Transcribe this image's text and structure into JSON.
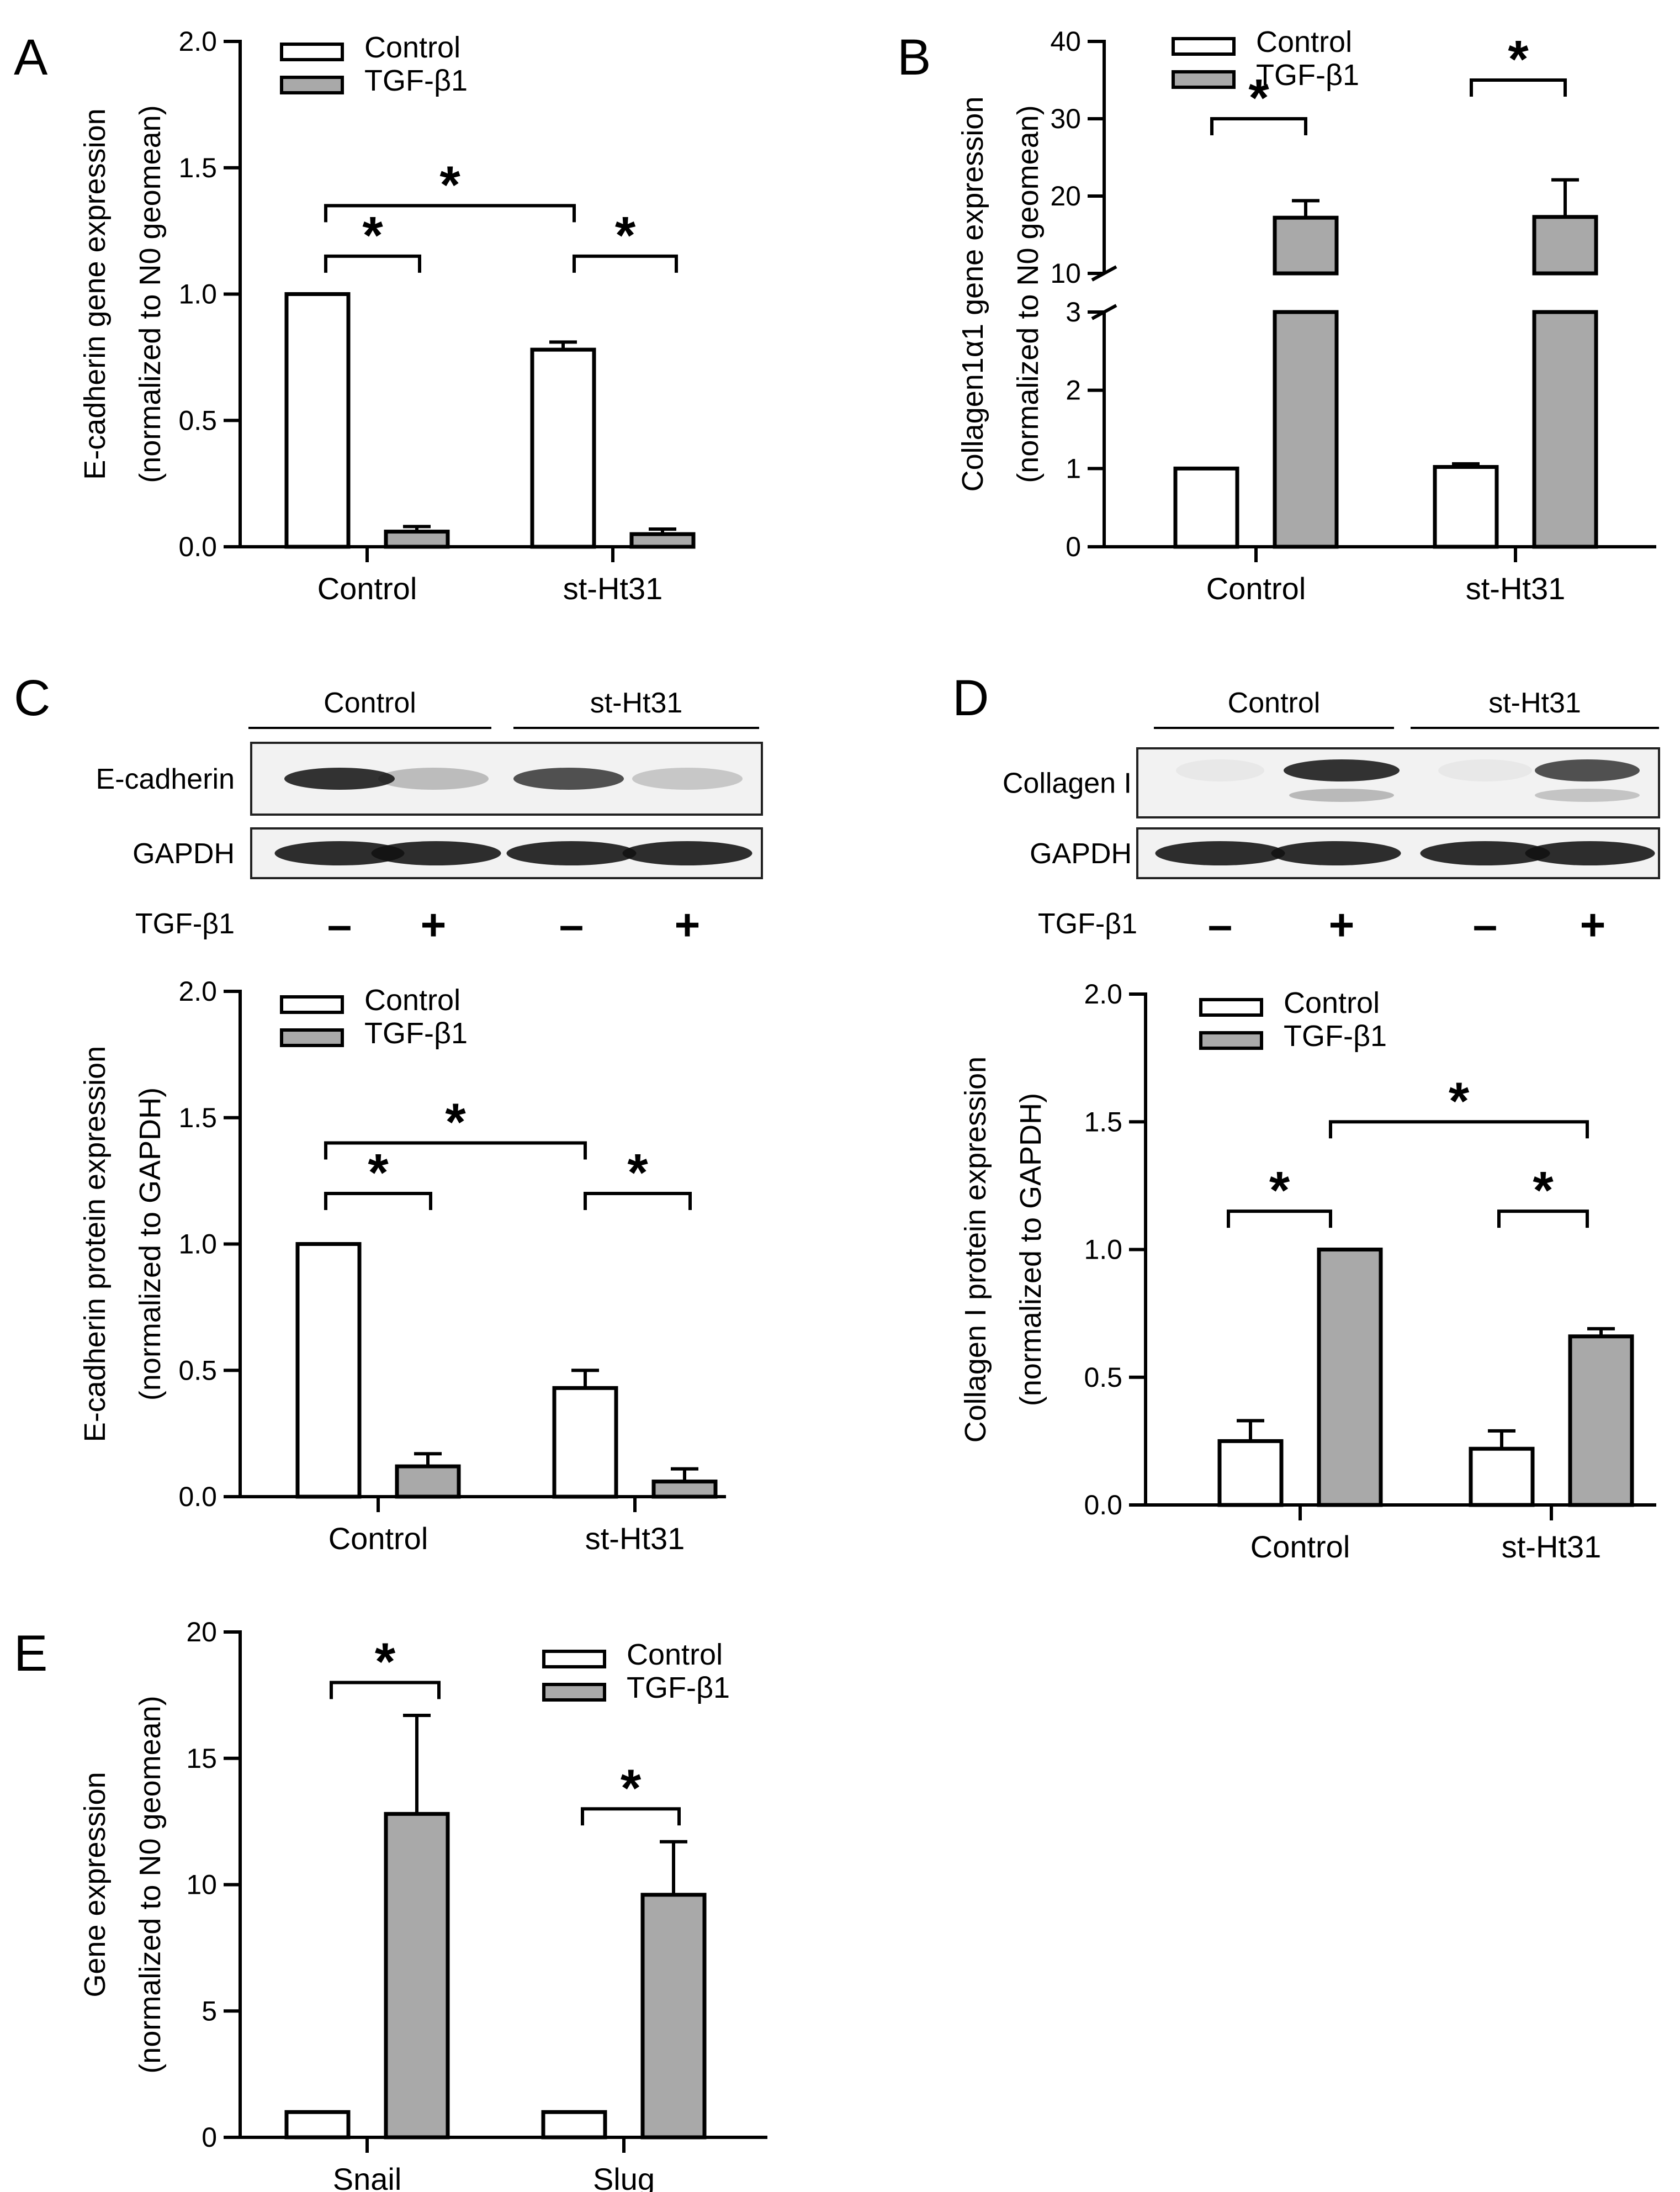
{
  "colors": {
    "control": "#ffffff",
    "tgf": "#a9a9a9",
    "stroke": "#000000"
  },
  "legend": {
    "control": "Control",
    "tgf": "TGF-β1"
  },
  "blots": [
    {
      "panel": "C",
      "groups": [
        "Control",
        "st-Ht31"
      ],
      "rows": [
        "E-cadherin",
        "GAPDH"
      ],
      "treatment_label": "TGF-β1",
      "signs": [
        "–",
        "+",
        "–",
        "+"
      ]
    },
    {
      "panel": "D",
      "groups": [
        "Control",
        "st-Ht31"
      ],
      "rows": [
        "Collagen I",
        "GAPDH"
      ],
      "treatment_label": "TGF-β1",
      "signs": [
        "–",
        "+",
        "–",
        "+"
      ]
    }
  ],
  "chart_data": [
    {
      "panel": "A",
      "type": "bar",
      "categories": [
        "Control",
        "st-Ht31"
      ],
      "series": [
        {
          "name": "Control",
          "values": [
            1.0,
            0.78
          ],
          "errors": [
            0,
            0.03
          ]
        },
        {
          "name": "TGF-β1",
          "values": [
            0.06,
            0.05
          ],
          "errors": [
            0.02,
            0.02
          ]
        }
      ],
      "ylabel": [
        "E-cadherin gene expression",
        "(normalized to N0 geomean)"
      ],
      "ylim": [
        0,
        2.0
      ],
      "yticks": [
        "0.0",
        "0.5",
        "1.0",
        "1.5",
        "2.0"
      ],
      "significance": [
        "*",
        "*",
        "*"
      ],
      "legend_position": "top-left"
    },
    {
      "panel": "B",
      "type": "bar",
      "categories": [
        "Control",
        "st-Ht31"
      ],
      "series": [
        {
          "name": "Control",
          "values": [
            1.0,
            1.02
          ],
          "errors": [
            0,
            0.04
          ]
        },
        {
          "name": "TGF-β1",
          "values": [
            17.2,
            17.3
          ],
          "errors": [
            2.2,
            4.8
          ]
        }
      ],
      "ylabel": [
        "Collagen1α1 gene expression",
        "(normalized to N0 geomean)"
      ],
      "broken_axis": {
        "lower": [
          0,
          3
        ],
        "upper": [
          10,
          40
        ]
      },
      "yticks": [
        "0",
        "1",
        "2",
        "3",
        "10",
        "20",
        "30",
        "40"
      ],
      "significance": [
        "*",
        "*"
      ],
      "legend_position": "top-left"
    },
    {
      "panel": "C",
      "type": "bar",
      "categories": [
        "Control",
        "st-Ht31"
      ],
      "series": [
        {
          "name": "Control",
          "values": [
            1.0,
            0.43
          ],
          "errors": [
            0,
            0.07
          ]
        },
        {
          "name": "TGF-β1",
          "values": [
            0.12,
            0.06
          ],
          "errors": [
            0.05,
            0.05
          ]
        }
      ],
      "ylabel": [
        "E-cadherin protein expression",
        "(normalized to GAPDH)"
      ],
      "ylim": [
        0,
        2.0
      ],
      "yticks": [
        "0.0",
        "0.5",
        "1.0",
        "1.5",
        "2.0"
      ],
      "significance": [
        "*",
        "*",
        "*"
      ],
      "legend_position": "top-left"
    },
    {
      "panel": "D",
      "type": "bar",
      "categories": [
        "Control",
        "st-Ht31"
      ],
      "series": [
        {
          "name": "Control",
          "values": [
            0.25,
            0.22
          ],
          "errors": [
            0.08,
            0.07
          ]
        },
        {
          "name": "TGF-β1",
          "values": [
            1.0,
            0.66
          ],
          "errors": [
            0,
            0.03
          ]
        }
      ],
      "ylabel": [
        "Collagen I protein expression",
        "(normalized to GAPDH)"
      ],
      "ylim": [
        0,
        2.0
      ],
      "yticks": [
        "0.0",
        "0.5",
        "1.0",
        "1.5",
        "2.0"
      ],
      "significance": [
        "*",
        "*",
        "*"
      ],
      "legend_position": "top-left"
    },
    {
      "panel": "E",
      "type": "bar",
      "categories": [
        "Snail",
        "Slug"
      ],
      "series": [
        {
          "name": "Control",
          "values": [
            1.0,
            1.0
          ],
          "errors": [
            0,
            0
          ]
        },
        {
          "name": "TGF-β1",
          "values": [
            12.8,
            9.6
          ],
          "errors": [
            3.9,
            2.1
          ]
        }
      ],
      "ylabel": [
        "Gene expression",
        "(normalized to N0 geomean)"
      ],
      "ylim": [
        0,
        20
      ],
      "yticks": [
        "0",
        "5",
        "10",
        "15",
        "20"
      ],
      "significance": [
        "*",
        "*"
      ],
      "legend_position": "top-right"
    }
  ]
}
